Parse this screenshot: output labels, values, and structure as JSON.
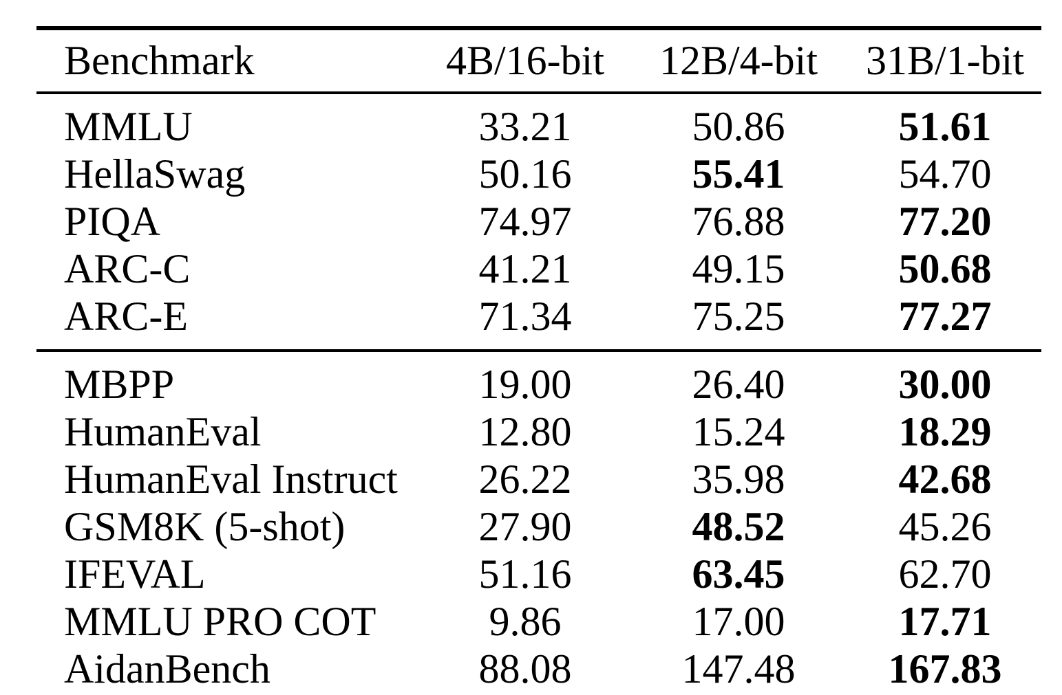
{
  "table": {
    "columns": [
      "Benchmark",
      "4B/16-bit",
      "12B/4-bit",
      "31B/1-bit"
    ],
    "sections": [
      {
        "rows": [
          {
            "benchmark": "MMLU",
            "values": [
              "33.21",
              "50.86",
              "51.61"
            ],
            "bold_index": 2
          },
          {
            "benchmark": "HellaSwag",
            "values": [
              "50.16",
              "55.41",
              "54.70"
            ],
            "bold_index": 1
          },
          {
            "benchmark": "PIQA",
            "values": [
              "74.97",
              "76.88",
              "77.20"
            ],
            "bold_index": 2
          },
          {
            "benchmark": "ARC-C",
            "values": [
              "41.21",
              "49.15",
              "50.68"
            ],
            "bold_index": 2
          },
          {
            "benchmark": "ARC-E",
            "values": [
              "71.34",
              "75.25",
              "77.27"
            ],
            "bold_index": 2
          }
        ]
      },
      {
        "rows": [
          {
            "benchmark": "MBPP",
            "values": [
              "19.00",
              "26.40",
              "30.00"
            ],
            "bold_index": 2
          },
          {
            "benchmark": "HumanEval",
            "values": [
              "12.80",
              "15.24",
              "18.29"
            ],
            "bold_index": 2
          },
          {
            "benchmark": "HumanEval Instruct",
            "values": [
              "26.22",
              "35.98",
              "42.68"
            ],
            "bold_index": 2
          },
          {
            "benchmark": "GSM8K (5-shot)",
            "values": [
              "27.90",
              "48.52",
              "45.26"
            ],
            "bold_index": 1
          },
          {
            "benchmark": "IFEVAL",
            "values": [
              "51.16",
              "63.45",
              "62.70"
            ],
            "bold_index": 1
          },
          {
            "benchmark": "MMLU PRO COT",
            "values": [
              "9.86",
              "17.00",
              "17.71"
            ],
            "bold_index": 2
          },
          {
            "benchmark": "AidanBench",
            "values": [
              "88.08",
              "147.48",
              "167.83"
            ],
            "bold_index": 2
          }
        ]
      }
    ],
    "style": {
      "text_color": "#000000",
      "background_color": "#ffffff",
      "rule_color": "#000000"
    }
  }
}
